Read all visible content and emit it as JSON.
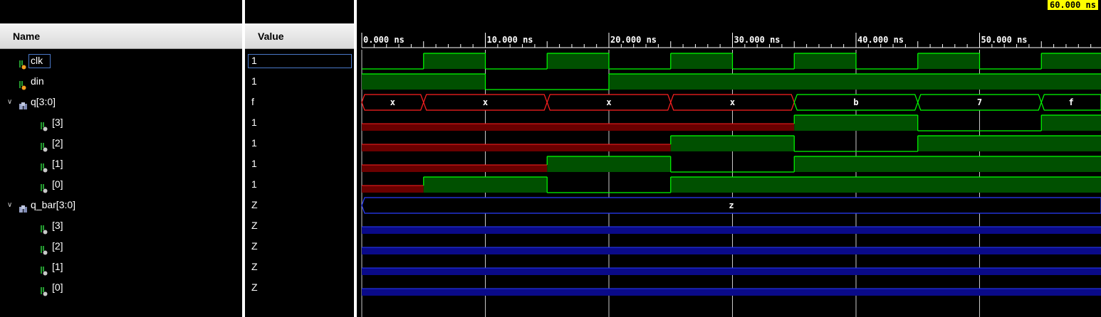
{
  "names_header": "Name",
  "values_header": "Value",
  "cursor_time": "60.000 ns",
  "time_axis": {
    "unit": "ns",
    "start": 0,
    "end": 60,
    "labels": [
      "0.000 ns",
      "10.000 ns",
      "20.000 ns",
      "30.000 ns",
      "40.000 ns",
      "50.000 ns"
    ]
  },
  "signals": [
    {
      "name": "clk",
      "value": "1",
      "kind": "bit",
      "icon": "signal-bit-icon",
      "selected": true,
      "transitions": [
        [
          0,
          0
        ],
        [
          5,
          1
        ],
        [
          10,
          0
        ],
        [
          15,
          1
        ],
        [
          20,
          0
        ],
        [
          25,
          1
        ],
        [
          30,
          0
        ],
        [
          35,
          1
        ],
        [
          40,
          0
        ],
        [
          45,
          1
        ],
        [
          50,
          0
        ],
        [
          55,
          1
        ]
      ]
    },
    {
      "name": "din",
      "value": "1",
      "kind": "bit",
      "icon": "signal-bit-icon",
      "transitions": [
        [
          0,
          1
        ],
        [
          10,
          0
        ],
        [
          20,
          1
        ]
      ]
    },
    {
      "name": "q[3:0]",
      "value": "f",
      "kind": "bus",
      "icon": "bus-icon",
      "expanded": true,
      "segments": [
        {
          "start": 0,
          "end": 5,
          "label": "x",
          "state": "x"
        },
        {
          "start": 5,
          "end": 15,
          "label": "x",
          "state": "x"
        },
        {
          "start": 15,
          "end": 25,
          "label": "x",
          "state": "x"
        },
        {
          "start": 25,
          "end": 35,
          "label": "x",
          "state": "x"
        },
        {
          "start": 35,
          "end": 45,
          "label": "b",
          "state": "ok"
        },
        {
          "start": 45,
          "end": 55,
          "label": "7",
          "state": "ok"
        },
        {
          "start": 55,
          "end": 60,
          "label": "f",
          "state": "ok"
        }
      ]
    },
    {
      "name": "[3]",
      "value": "1",
      "kind": "bit",
      "icon": "bus-bit-icon",
      "child": true,
      "transitions": [
        [
          0,
          "x"
        ],
        [
          35,
          1
        ],
        [
          45,
          0
        ],
        [
          55,
          1
        ]
      ]
    },
    {
      "name": "[2]",
      "value": "1",
      "kind": "bit",
      "icon": "bus-bit-icon",
      "child": true,
      "transitions": [
        [
          0,
          "x"
        ],
        [
          25,
          1
        ],
        [
          35,
          0
        ],
        [
          45,
          1
        ]
      ]
    },
    {
      "name": "[1]",
      "value": "1",
      "kind": "bit",
      "icon": "bus-bit-icon",
      "child": true,
      "transitions": [
        [
          0,
          "x"
        ],
        [
          15,
          1
        ],
        [
          25,
          0
        ],
        [
          35,
          1
        ]
      ]
    },
    {
      "name": "[0]",
      "value": "1",
      "kind": "bit",
      "icon": "bus-bit-icon",
      "child": true,
      "transitions": [
        [
          0,
          "x"
        ],
        [
          5,
          1
        ],
        [
          15,
          0
        ],
        [
          25,
          1
        ]
      ]
    },
    {
      "name": "q_bar[3:0]",
      "value": "Z",
      "kind": "bus",
      "icon": "bus-icon",
      "expanded": true,
      "segments": [
        {
          "start": 0,
          "end": 60,
          "label": "z",
          "state": "z"
        }
      ]
    },
    {
      "name": "[3]",
      "value": "Z",
      "kind": "bit",
      "icon": "bus-bit-icon",
      "child": true,
      "transitions": [
        [
          0,
          "z"
        ]
      ]
    },
    {
      "name": "[2]",
      "value": "Z",
      "kind": "bit",
      "icon": "bus-bit-icon",
      "child": true,
      "transitions": [
        [
          0,
          "z"
        ]
      ]
    },
    {
      "name": "[1]",
      "value": "Z",
      "kind": "bit",
      "icon": "bus-bit-icon",
      "child": true,
      "transitions": [
        [
          0,
          "z"
        ]
      ]
    },
    {
      "name": "[0]",
      "value": "Z",
      "kind": "bit",
      "icon": "bus-bit-icon",
      "child": true,
      "transitions": [
        [
          0,
          "z"
        ]
      ]
    }
  ],
  "colors": {
    "high_fill": "#005000",
    "line": "#00ff00",
    "x_fill": "#6a0000",
    "x_line": "#ff2020",
    "z_fill": "#0a0a88",
    "z_line": "#2a3cff",
    "grid": "#c8c8c8",
    "ruler_text": "#ffffff",
    "cursor": "#ffff00"
  }
}
